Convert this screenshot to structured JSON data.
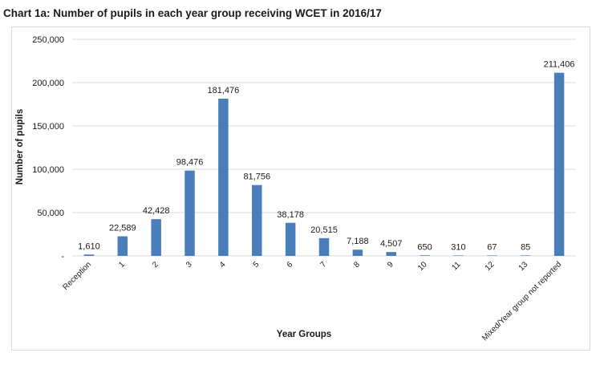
{
  "chart_data": {
    "type": "bar",
    "title": "Chart 1a: Number of pupils in each year group receiving WCET in 2016/17",
    "xlabel": "Year Groups",
    "ylabel": "Number of pupils",
    "ylim": [
      0,
      250000
    ],
    "yticks": [
      0,
      50000,
      100000,
      150000,
      200000,
      250000
    ],
    "ytick_labels": [
      "-",
      "50,000",
      "100,000",
      "150,000",
      "200,000",
      "250,000"
    ],
    "grid": true,
    "categories": [
      "Reception",
      "1",
      "2",
      "3",
      "4",
      "5",
      "6",
      "7",
      "8",
      "9",
      "10",
      "11",
      "12",
      "13",
      "Mixed/Year group not reported"
    ],
    "values": [
      1610,
      22589,
      42428,
      98476,
      181476,
      81756,
      38178,
      20515,
      7188,
      4507,
      650,
      310,
      67,
      85,
      211406
    ],
    "data_labels": [
      "1,610",
      "22,589",
      "42,428",
      "98,476",
      "181,476",
      "81,756",
      "38,178",
      "20,515",
      "7,188",
      "4,507",
      "650",
      "310",
      "67",
      "85",
      "211,406"
    ],
    "bar_color": "#4a7ebb",
    "grid_color": "#d9d9d9"
  }
}
